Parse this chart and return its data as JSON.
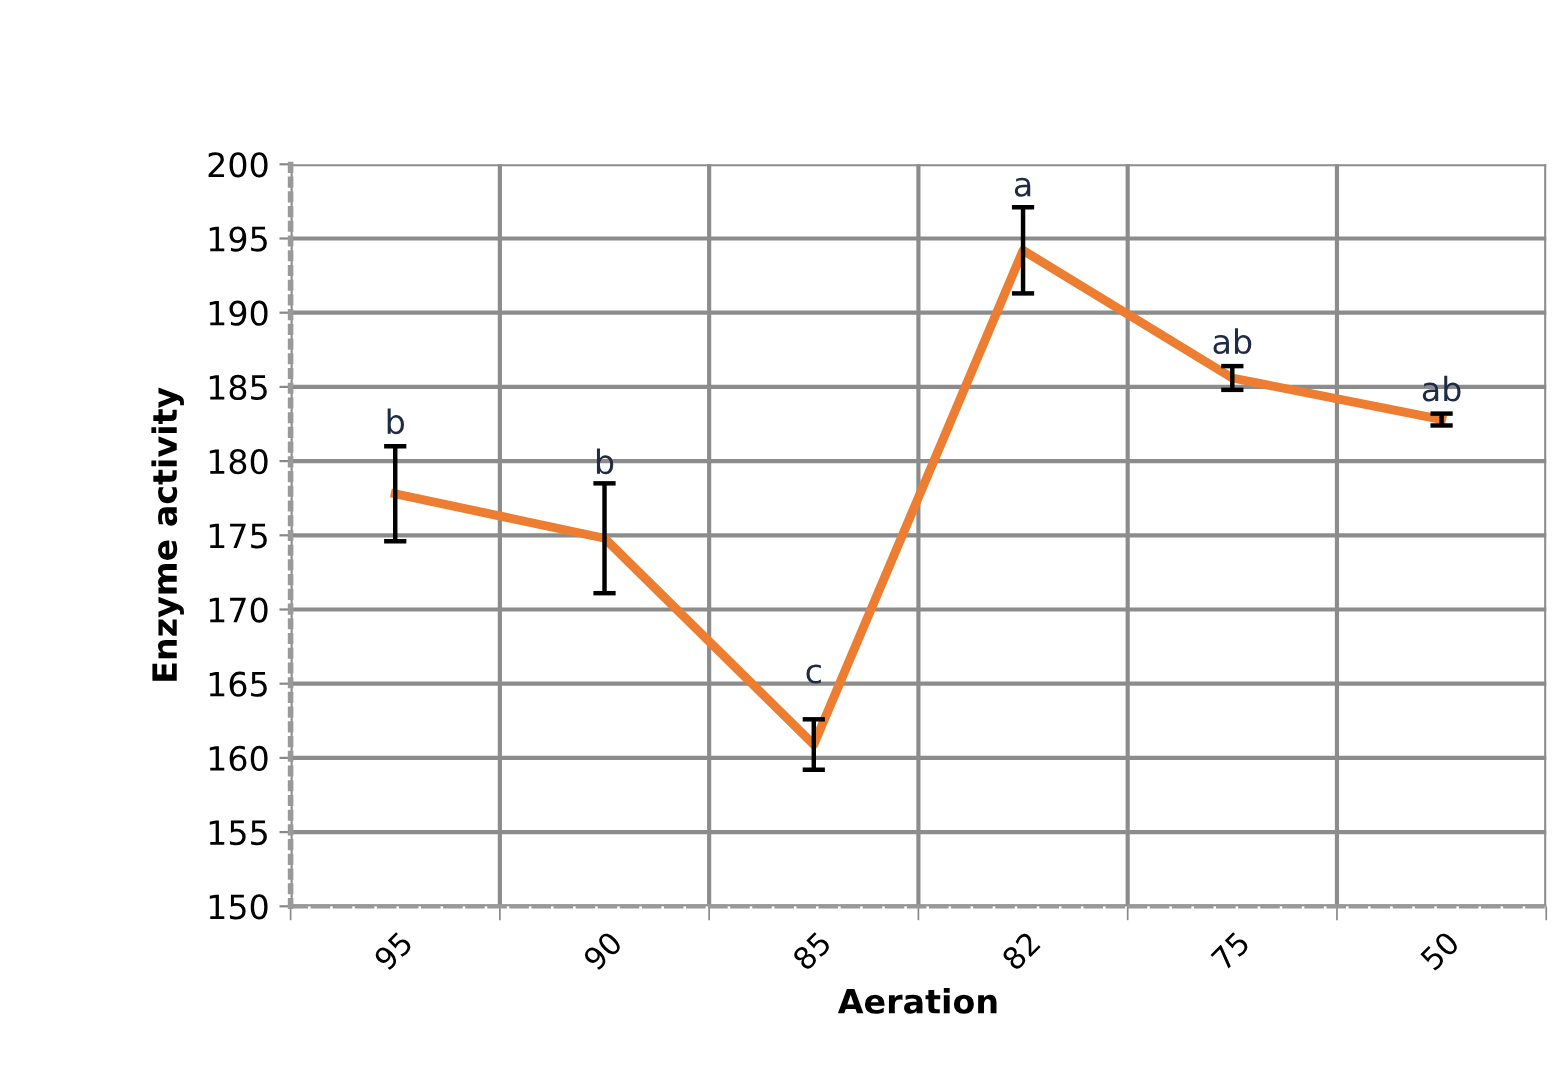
{
  "chart_data": {
    "type": "line",
    "xlabel": "Aeration",
    "ylabel": "Enzyme activity",
    "categories": [
      "95",
      "90",
      "85",
      "82",
      "75",
      "50"
    ],
    "series": [
      {
        "color": "#ed7d31",
        "values": [
          177.8,
          174.8,
          160.9,
          194.2,
          185.6,
          182.8
        ],
        "errors": [
          3.2,
          3.7,
          1.7,
          2.9,
          0.8,
          0.4
        ]
      }
    ],
    "ylim": [
      150,
      200
    ],
    "yticks": [
      150,
      155,
      160,
      165,
      170,
      175,
      180,
      185,
      190,
      195,
      200
    ],
    "grid": true,
    "marker": "none",
    "line_style": "solid",
    "annotations": [
      {
        "text": "b",
        "x": "95",
        "y": 181.0
      },
      {
        "text": "b",
        "x": "90",
        "y": 178.3
      },
      {
        "text": "c",
        "x": "85",
        "y": 164.2
      },
      {
        "text": "a",
        "x": "82",
        "y": 197.0
      },
      {
        "text": "ab",
        "x": "75",
        "y": 186.4
      },
      {
        "text": "ab",
        "x": "50",
        "y": 183.2
      }
    ]
  }
}
